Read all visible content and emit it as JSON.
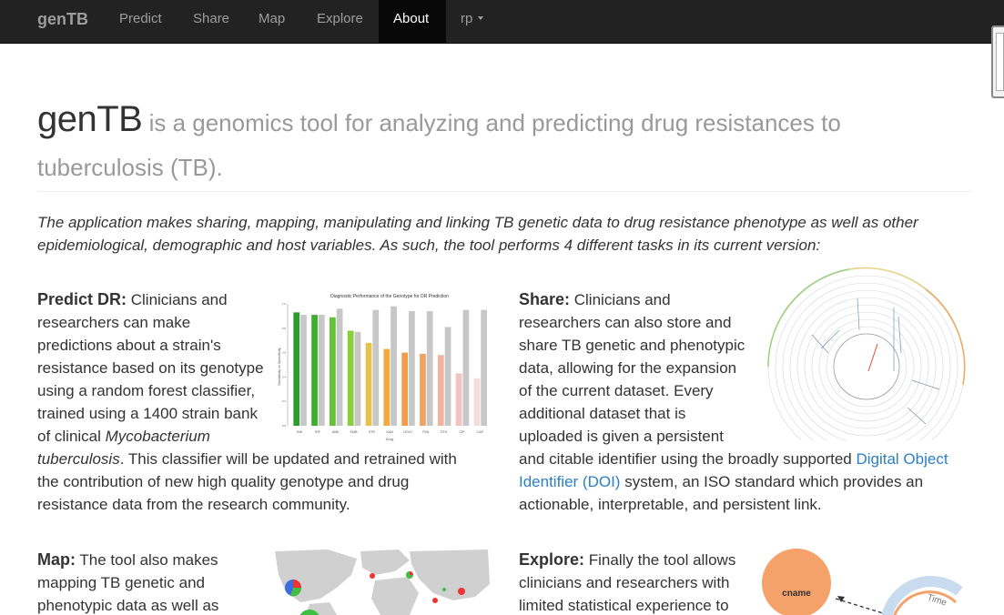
{
  "nav": {
    "brand": "genTB",
    "items": [
      {
        "label": "Predict",
        "active": false
      },
      {
        "label": "Share",
        "active": false
      },
      {
        "label": "Map",
        "active": false
      },
      {
        "label": "Explore",
        "active": false
      },
      {
        "label": "About",
        "active": true
      },
      {
        "label": "rp",
        "active": false,
        "dropdown": true
      }
    ]
  },
  "header": {
    "name": "genTB",
    "tagline_1": " is a genomics tool for analyzing and predicting drug resistances to",
    "tagline_2": "tuberculosis (TB)."
  },
  "intro": "The application makes sharing, mapping, manipulating and linking TB genetic data to drug resistance phenotype as well as other epidemiological, demographic and host variables. As such, the tool performs 4 different tasks in its current version:",
  "sections": {
    "predict": {
      "heading": "Predict DR:",
      "lines": [
        " Clinicians and",
        "researchers can make",
        "predictions about a strain's",
        "resistance based on its genotype",
        "using a random forest classifier,",
        "trained using a 1400 strain bank",
        "of clinical "
      ],
      "italic_1": "Mycobacterium",
      "italic_2": "tuberculosis",
      "tail_1": ". This classifier will be updated and retrained with",
      "tail_2": "the contribution of new high quality genotype and drug",
      "tail_3": "resistance data from the research community."
    },
    "share": {
      "heading": "Share:",
      "lines": [
        " Clinicians and",
        "researchers can also store and",
        "share TB genetic and phenotypic",
        "data, allowing for the expansion",
        "of the current dataset. Every",
        "additional dataset that is",
        "uploaded is given a persistent"
      ],
      "line_8": "and citable identifier using the broadly supported ",
      "link_1": "Digital Object",
      "link_2": "Identifier (DOI)",
      "line_9": " system, an ISO standard which provides an",
      "line_10": "actionable, interpretable, and persistent link."
    },
    "map": {
      "heading": "Map:",
      "lines": [
        " The tool also makes",
        "mapping TB genetic and",
        "phenotypic data as well as"
      ]
    },
    "explore": {
      "heading": "Explore:",
      "lines": [
        " Finally the tool allows",
        "clinicians and researchers with",
        "limited statistical experience to"
      ],
      "node_label": "cname",
      "time_label": "Time"
    }
  },
  "chart_data": {
    "type": "bar",
    "title": "Diagnostic Performance of the Genotype for DR Prediction",
    "xlabel": "Drug",
    "ylabel": "Sensitivity or Specificity",
    "ylim": [
      0,
      1
    ],
    "categories": [
      "INH",
      "RIF",
      "AMK",
      "EMB",
      "STR",
      "KAN",
      "LEVO",
      "PZA",
      "ETH",
      "CIP",
      "CAP"
    ],
    "series": [
      {
        "values": [
          0.93,
          0.91,
          0.89,
          0.78,
          0.68,
          0.63,
          0.6,
          0.59,
          0.58,
          0.43,
          0.39
        ]
      },
      {
        "values": [
          0.91,
          0.91,
          0.96,
          0.77,
          0.95,
          0.98,
          0.94,
          0.94,
          0.81,
          0.95,
          0.95
        ]
      }
    ],
    "colors": [
      "#2f9a2f",
      "#3fae2f",
      "#67c03a",
      "#8ccf3e",
      "#e8c14a",
      "#f2a93e",
      "#f29c48",
      "#f3a266",
      "#f1b39e",
      "#f2c4c0",
      "#f7dcdc"
    ],
    "second_color": "#c7c7c7"
  },
  "colors": {
    "navbar_bg": "#222222",
    "nav_text": "#9d9d9d",
    "link": "#2a7fc5"
  }
}
